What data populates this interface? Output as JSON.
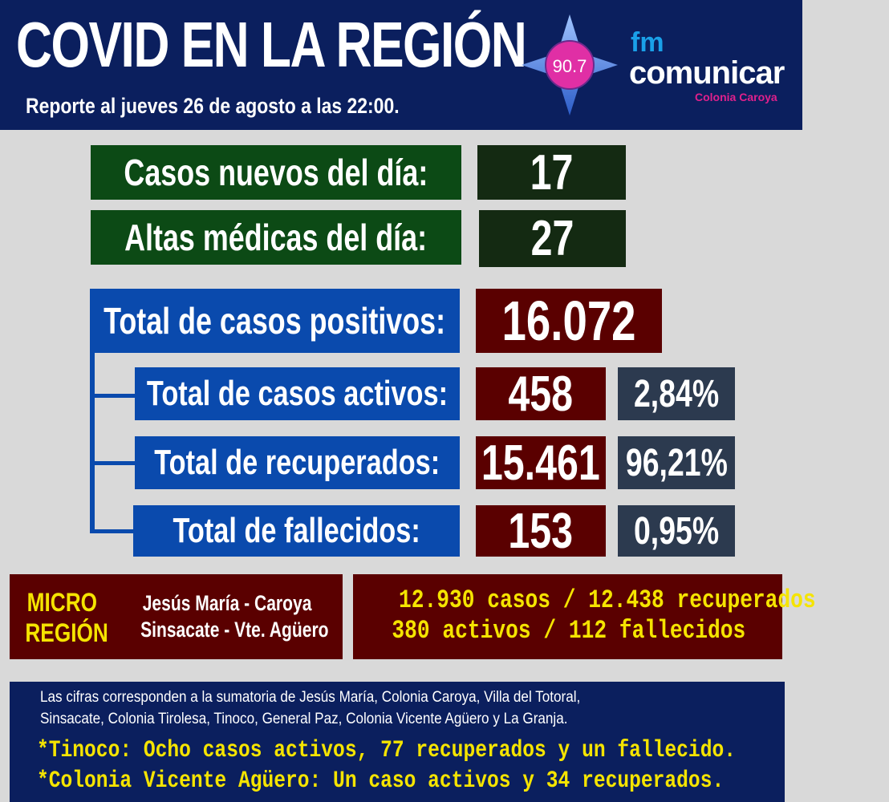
{
  "header": {
    "title": "COVID EN LA REGIÓN",
    "subtitle": "Reporte al jueves 26 de agosto a las 22:00."
  },
  "logo": {
    "frequency": "90.7",
    "fm": "fm",
    "name": "comunicar",
    "location": "Colonia Caroya"
  },
  "daily": {
    "new_cases_label": "Casos nuevos del día:",
    "new_cases": "17",
    "discharges_label": "Altas médicas del día:",
    "discharges": "27"
  },
  "totals": {
    "positive_label": "Total de casos positivos:",
    "positive": "16.072",
    "active_label": "Total de casos activos:",
    "active": "458",
    "active_pct": "2,84%",
    "recovered_label": "Total de recuperados:",
    "recovered": "15.461",
    "recovered_pct": "96,21%",
    "deaths_label": "Total de fallecidos:",
    "deaths": "153",
    "deaths_pct": "0,95%"
  },
  "micro": {
    "label_1": "MICRO",
    "label_2": "REGIÓN",
    "towns_1": "Jesús María - Caroya",
    "towns_2": "Sinsacate - Vte. Agüero",
    "stats_1": "12.930 casos / 12.438 recuperados",
    "stats_2": "380 activos  / 112 fallecidos"
  },
  "footer": {
    "note_1": "Las cifras corresponden a la sumatoria de Jesús María, Colonia Caroya, Villa del Totoral,",
    "note_2": "Sinsacate, Colonia Tirolesa, Tinoco, General Paz, Colonia Vicente Agüero  y La Granja.",
    "highlight_1": "*Tinoco: Ocho casos activos, 77 recuperados y un fallecido.",
    "highlight_2": "*Colonia Vicente Agüero: Un caso activos y 34 recuperados."
  },
  "colors": {
    "navy": "#0b1f5e",
    "green": "#0c4a15",
    "blue": "#0a4aad",
    "red": "#5a0000",
    "slate": "#2c3a4f",
    "yellow": "#f5e400",
    "pink": "#e0208c"
  }
}
